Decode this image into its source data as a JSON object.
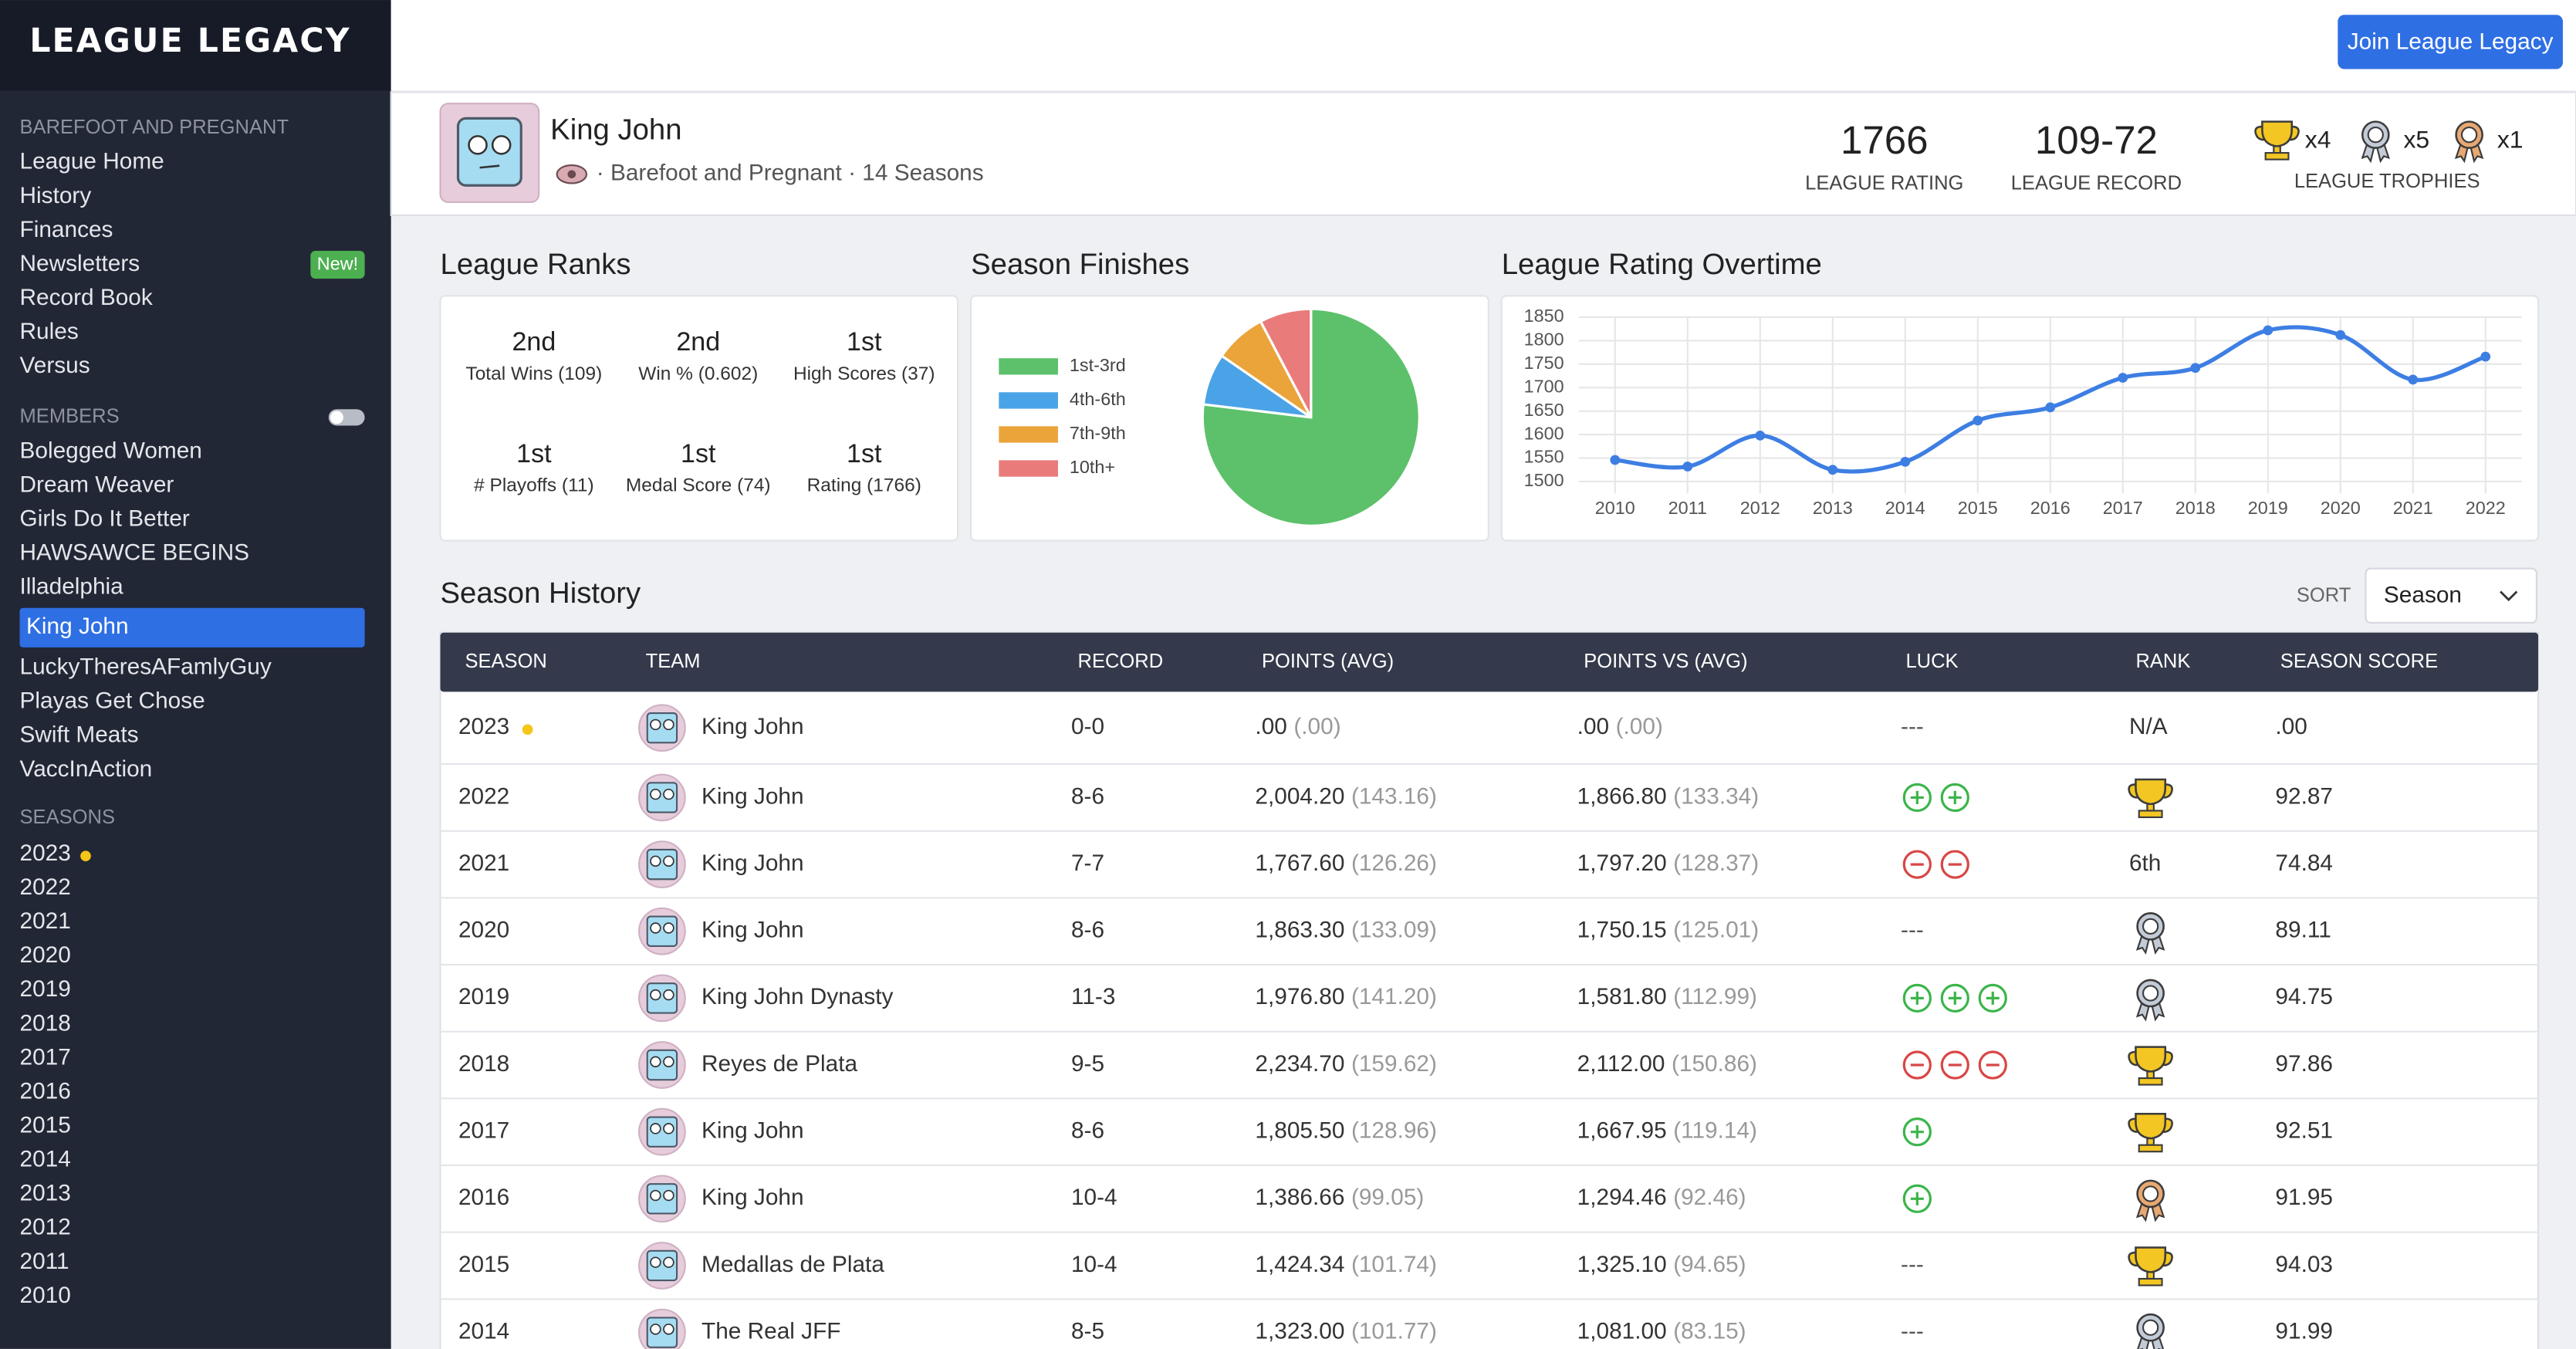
{
  "sidebar": {
    "logo": "LEAGUE LEGACY",
    "league": {
      "heading": "BAREFOOT AND PREGNANT",
      "links": [
        "League Home",
        "History",
        "Finances",
        "Newsletters",
        "Record Book",
        "Rules",
        "Versus"
      ],
      "badge": {
        "text": "New!",
        "item": 3
      }
    },
    "members": {
      "heading": "MEMBERS",
      "items": [
        "Bolegged Women",
        "Dream Weaver",
        "Girls Do It Better",
        "HAWSAWCE BEGINS",
        "Illadelphia",
        "King John",
        "LuckyTheresAFamlyGuy",
        "Playas Get Chose",
        "Swift Meats",
        "VaccInAction"
      ],
      "active": 5
    },
    "seasons": {
      "heading": "SEASONS",
      "items": [
        "2023",
        "2022",
        "2021",
        "2020",
        "2019",
        "2018",
        "2017",
        "2016",
        "2015",
        "2014",
        "2013",
        "2012",
        "2011",
        "2010"
      ],
      "current": 0
    }
  },
  "topbar": {
    "button": "Join League Legacy"
  },
  "profile": {
    "name": "King John",
    "subtitle": "· Barefoot and Pregnant · 14 Seasons",
    "stats": [
      {
        "value": "1766",
        "label": "LEAGUE RATING"
      },
      {
        "value": "109-72",
        "label": "LEAGUE RECORD"
      }
    ],
    "trophies": {
      "items": [
        {
          "icon": "trophy",
          "count": "x4"
        },
        {
          "icon": "medal-silver",
          "count": "x5"
        },
        {
          "icon": "medal-bronze",
          "count": "x1"
        }
      ],
      "label": "LEAGUE TROPHIES"
    }
  },
  "league_ranks": {
    "title": "League Ranks",
    "cells": [
      {
        "rank": "2nd",
        "label": "Total Wins (109)"
      },
      {
        "rank": "2nd",
        "label": "Win % (0.602)"
      },
      {
        "rank": "1st",
        "label": "High Scores (37)"
      },
      {
        "rank": "1st",
        "label": "# Playoffs (11)"
      },
      {
        "rank": "1st",
        "label": "Medal Score (74)"
      },
      {
        "rank": "1st",
        "label": "Rating (1766)"
      }
    ]
  },
  "chart_data": [
    {
      "type": "pie",
      "title": "Season Finishes",
      "categories": [
        "1st-3rd",
        "4th-6th",
        "7th-9th",
        "10th+"
      ],
      "values": [
        10,
        1,
        1,
        1
      ],
      "colors": [
        "#5cc16a",
        "#4aa3e6",
        "#eba43a",
        "#ea7b7b"
      ]
    },
    {
      "type": "line",
      "title": "League Rating Overtime",
      "categories": [
        "2010",
        "2011",
        "2012",
        "2013",
        "2014",
        "2015",
        "2016",
        "2017",
        "2018",
        "2019",
        "2020",
        "2021",
        "2022"
      ],
      "values": [
        1546,
        1532,
        1598,
        1525,
        1542,
        1630,
        1658,
        1721,
        1742,
        1822,
        1812,
        1717,
        1766
      ],
      "color": "#3d7ee3",
      "ylim": [
        1475,
        1850
      ],
      "yticks": [
        1500,
        1550,
        1600,
        1650,
        1700,
        1750,
        1800,
        1850
      ],
      "grid": true
    }
  ],
  "season_history": {
    "title": "Season History",
    "sort_label": "SORT",
    "sort_value": "Season",
    "table": {
      "headers": [
        "SEASON",
        "TEAM",
        "RECORD",
        "POINTS (AVG)",
        "POINTS VS (AVG)",
        "LUCK",
        "RANK",
        "SEASON SCORE"
      ],
      "rows": [
        {
          "season": "2023",
          "current": true,
          "team": "King John",
          "record": "0-0",
          "points": ".00",
          "points_avg": "(.00)",
          "points_vs": ".00",
          "points_vs_avg": "(.00)",
          "luck": "---",
          "rank": "N/A",
          "score": ".00"
        },
        {
          "season": "2022",
          "team": "King John",
          "record": "8-6",
          "points": "2,004.20",
          "points_avg": "(143.16)",
          "points_vs": "1,866.80",
          "points_vs_avg": "(133.34)",
          "luck_icons": {
            "sign": "plus",
            "count": 2
          },
          "rank_icon": "trophy",
          "score": "92.87"
        },
        {
          "season": "2021",
          "team": "King John",
          "record": "7-7",
          "points": "1,767.60",
          "points_avg": "(126.26)",
          "points_vs": "1,797.20",
          "points_vs_avg": "(128.37)",
          "luck_icons": {
            "sign": "minus",
            "count": 2
          },
          "rank": "6th",
          "score": "74.84"
        },
        {
          "season": "2020",
          "team": "King John",
          "record": "8-6",
          "points": "1,863.30",
          "points_avg": "(133.09)",
          "points_vs": "1,750.15",
          "points_vs_avg": "(125.01)",
          "luck": "---",
          "rank_icon": "medal-silver",
          "score": "89.11"
        },
        {
          "season": "2019",
          "team": "King John Dynasty",
          "record": "11-3",
          "points": "1,976.80",
          "points_avg": "(141.20)",
          "points_vs": "1,581.80",
          "points_vs_avg": "(112.99)",
          "luck_icons": {
            "sign": "plus",
            "count": 3
          },
          "rank_icon": "medal-silver",
          "score": "94.75"
        },
        {
          "season": "2018",
          "team": "Reyes de Plata",
          "record": "9-5",
          "points": "2,234.70",
          "points_avg": "(159.62)",
          "points_vs": "2,112.00",
          "points_vs_avg": "(150.86)",
          "luck_icons": {
            "sign": "minus",
            "count": 3
          },
          "rank_icon": "trophy",
          "score": "97.86"
        },
        {
          "season": "2017",
          "team": "King John",
          "record": "8-6",
          "points": "1,805.50",
          "points_avg": "(128.96)",
          "points_vs": "1,667.95",
          "points_vs_avg": "(119.14)",
          "luck_icons": {
            "sign": "plus",
            "count": 1
          },
          "rank_icon": "trophy",
          "score": "92.51"
        },
        {
          "season": "2016",
          "team": "King John",
          "record": "10-4",
          "points": "1,386.66",
          "points_avg": "(99.05)",
          "points_vs": "1,294.46",
          "points_vs_avg": "(92.46)",
          "luck_icons": {
            "sign": "plus",
            "count": 1
          },
          "rank_icon": "medal-bronze",
          "score": "91.95"
        },
        {
          "season": "2015",
          "team": "Medallas de Plata",
          "record": "10-4",
          "points": "1,424.34",
          "points_avg": "(101.74)",
          "points_vs": "1,325.10",
          "points_vs_avg": "(94.65)",
          "luck": "---",
          "rank_icon": "trophy",
          "score": "94.03"
        },
        {
          "season": "2014",
          "team": "The Real JFF",
          "record": "8-5",
          "points": "1,323.00",
          "points_avg": "(101.77)",
          "points_vs": "1,081.00",
          "points_vs_avg": "(83.15)",
          "luck": "---",
          "rank_icon": "medal-silver",
          "score": "91.99"
        }
      ]
    }
  }
}
